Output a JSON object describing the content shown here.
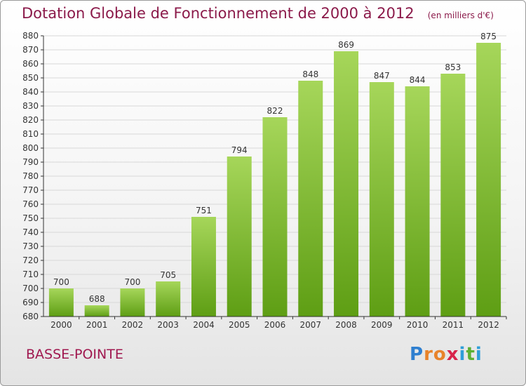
{
  "title": "Dotation Globale de Fonctionnement de 2000 à 2012",
  "unit": "(en milliers d'€)",
  "commune": "BASSE-POINTE",
  "logo": {
    "letters": [
      {
        "ch": "P",
        "color": "#2f7fd0"
      },
      {
        "ch": "r",
        "color": "#e8832a"
      },
      {
        "ch": "o",
        "color": "#e8832a"
      },
      {
        "ch": "x",
        "color": "#d8234a"
      },
      {
        "ch": "i",
        "color": "#2f9ed8"
      },
      {
        "ch": "t",
        "color": "#5bb033"
      },
      {
        "ch": "i",
        "color": "#2f9ed8"
      }
    ]
  },
  "colors": {
    "title": "#8b1a4a",
    "bar_light": "#a6d65a",
    "bar_dark": "#5e9e14",
    "grid": "#d8d8d8",
    "axis": "#333333"
  },
  "chart_data": {
    "type": "bar",
    "title": "Dotation Globale de Fonctionnement de 2000 à 2012",
    "subtitle": "(en milliers d'€)",
    "categories": [
      "2000",
      "2001",
      "2002",
      "2003",
      "2004",
      "2005",
      "2006",
      "2007",
      "2008",
      "2009",
      "2010",
      "2011",
      "2012"
    ],
    "values": [
      700,
      688,
      700,
      705,
      751,
      794,
      822,
      848,
      869,
      847,
      844,
      853,
      875
    ],
    "ylim": [
      680,
      880
    ],
    "ytick_step": 10,
    "grid": true,
    "xlabel": "",
    "ylabel": ""
  }
}
